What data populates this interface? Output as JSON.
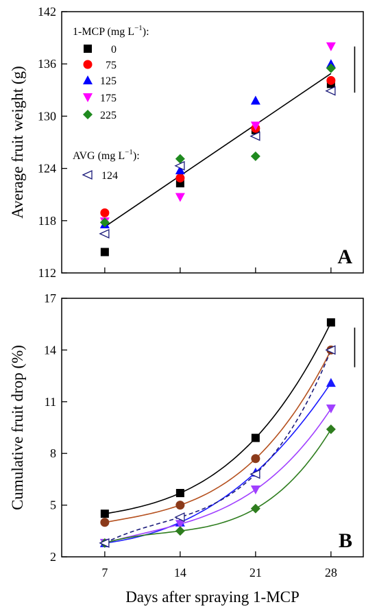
{
  "figure": {
    "xlabel": "Days after spraying 1-MCP"
  },
  "chart_data": [
    {
      "type": "scatter",
      "panel_label": "A",
      "ylabel": "Average fruit weight (g)",
      "x_ticks": [
        "7",
        "14",
        "21",
        "28"
      ],
      "y_ticks": [
        "112",
        "118",
        "124",
        "130",
        "136",
        "142"
      ],
      "xlim": [
        3,
        31
      ],
      "ylim": [
        112,
        142
      ],
      "legend_title_1": "1-MCP (mg L",
      "legend_title_2": "AVG (mg L",
      "legend_unit_sup": "−1",
      "legend_title_suffix": "):",
      "error_bar": {
        "x": 30.2,
        "y_low": 132.7,
        "y_high": 138
      },
      "fit_line": {
        "x": [
          7,
          28
        ],
        "y": [
          117.3,
          134.9
        ]
      },
      "series": [
        {
          "name": "0",
          "marker": "square",
          "color": "#000000",
          "x": [
            7,
            14,
            21,
            28
          ],
          "y": [
            114.4,
            122.3,
            128.4,
            133.7
          ]
        },
        {
          "name": "75",
          "marker": "circle",
          "color": "#ff0000",
          "x": [
            7,
            14,
            21,
            28
          ],
          "y": [
            118.9,
            122.9,
            128.6,
            134.1
          ]
        },
        {
          "name": "125",
          "marker": "triangle-up",
          "color": "#0000ff",
          "x": [
            7,
            14,
            21,
            28
          ],
          "y": [
            117.6,
            123.8,
            131.8,
            136.0
          ]
        },
        {
          "name": "175",
          "marker": "triangle-down",
          "color": "#ff00ff",
          "x": [
            7,
            14,
            21,
            28
          ],
          "y": [
            117.9,
            120.7,
            128.9,
            138.0
          ]
        },
        {
          "name": "225",
          "marker": "diamond",
          "color": "#1f8a1f",
          "x": [
            7,
            14,
            21,
            28
          ],
          "y": [
            117.8,
            125.1,
            125.4,
            135.5
          ]
        },
        {
          "name": "124",
          "marker": "triangle-left-open",
          "color": "#1a1a7a",
          "x": [
            7,
            14,
            21,
            28
          ],
          "y": [
            116.5,
            124.3,
            127.7,
            132.9
          ]
        }
      ]
    },
    {
      "type": "line",
      "panel_label": "B",
      "ylabel": "Cumulative fruit drop (%)",
      "x_ticks": [
        "7",
        "14",
        "21",
        "28"
      ],
      "y_ticks": [
        "2",
        "5",
        "8",
        "11",
        "14",
        "17"
      ],
      "xlim": [
        3,
        31
      ],
      "ylim": [
        2,
        17
      ],
      "error_bar": {
        "x": 30.2,
        "y_low": 13.0,
        "y_high": 15.3
      },
      "series": [
        {
          "name": "0",
          "marker": "square",
          "color": "#000000",
          "line_color": "#000000",
          "dashed": false,
          "x": [
            7,
            14,
            21,
            28
          ],
          "y": [
            4.5,
            5.7,
            8.9,
            15.6
          ]
        },
        {
          "name": "75",
          "marker": "circle",
          "color": "#8b3a1a",
          "line_color": "#b5501e",
          "dashed": false,
          "x": [
            7,
            14,
            21,
            28
          ],
          "y": [
            4.0,
            5.0,
            7.7,
            14.0
          ]
        },
        {
          "name": "125",
          "marker": "triangle-up",
          "color": "#1a1aff",
          "line_color": "#1a1aff",
          "dashed": false,
          "x": [
            7,
            14,
            21,
            28
          ],
          "y": [
            2.8,
            4.0,
            6.9,
            12.1
          ]
        },
        {
          "name": "175",
          "marker": "triangle-down",
          "color": "#a040ff",
          "line_color": "#a040ff",
          "dashed": false,
          "x": [
            7,
            14,
            21,
            28
          ],
          "y": [
            2.8,
            3.9,
            5.9,
            10.6
          ]
        },
        {
          "name": "225",
          "marker": "diamond",
          "color": "#2e7d1e",
          "line_color": "#2e7d1e",
          "dashed": false,
          "x": [
            7,
            14,
            21,
            28
          ],
          "y": [
            2.8,
            3.5,
            4.8,
            9.4
          ]
        },
        {
          "name": "124",
          "marker": "triangle-left-open",
          "color": "#1a1a7a",
          "line_color": "#1a1a7a",
          "dashed": true,
          "x": [
            7,
            14,
            21,
            28
          ],
          "y": [
            2.8,
            4.3,
            6.8,
            14.0
          ]
        }
      ]
    }
  ]
}
